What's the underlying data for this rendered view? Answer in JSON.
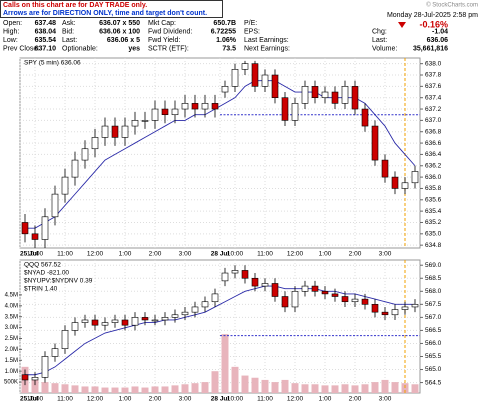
{
  "header": {
    "notice": [
      "Calls on this chart are for DAY TRADE only.",
      "Arrows are for DIRECTION ONLY, time and target don't count."
    ],
    "brand": "© StockCharts.com",
    "date": "Monday 28-Jul-2025 2:58 pm",
    "change_pct": "-0.16%",
    "quote": [
      [
        [
          "Open:",
          "637.48"
        ],
        [
          "Ask:",
          "636.07 x 550"
        ],
        [
          "Mkt Cap:",
          "650.7B"
        ],
        [
          "P/E:"
        ]
      ],
      [
        [
          "High:",
          "638.04"
        ],
        [
          "Bid:",
          "636.06 x 100"
        ],
        [
          "Fwd Dividend:",
          "6.72255"
        ],
        [
          "EPS:"
        ],
        [
          "Chg:",
          "-1.04"
        ]
      ],
      [
        [
          "Low:",
          "635.54"
        ],
        [
          "Last:",
          "636.06 x 5"
        ],
        [
          "Fwd Yield:",
          "1.06%"
        ],
        [
          "Last Earnings:"
        ],
        [
          "Last:",
          "636.06"
        ]
      ],
      [
        [
          "Prev Close:",
          "637.10"
        ],
        [
          "Optionable:",
          "yes"
        ],
        [
          "SCTR (ETF):",
          "73.5"
        ],
        [
          "Next Earnings:"
        ],
        [
          "Volume:",
          "35,661,816"
        ]
      ]
    ]
  },
  "chart_data": [
    {
      "type": "candlestick",
      "legend": [
        "SPY (5 min) 636.06"
      ],
      "xlim": [
        0,
        40
      ],
      "xticks": [
        {
          "value": 0,
          "label": "25 Jul"
        },
        {
          "value": 1.5,
          "label": "10:00"
        },
        {
          "value": 4.5,
          "label": "11:00"
        },
        {
          "value": 7.5,
          "label": "12:00"
        },
        {
          "value": 10.5,
          "label": "1:00"
        },
        {
          "value": 13.5,
          "label": "2:00"
        },
        {
          "value": 16.5,
          "label": "3:00"
        },
        {
          "value": 20,
          "label": "28 Jul"
        },
        {
          "value": 21.5,
          "label": "10:00"
        },
        {
          "value": 24.5,
          "label": "11:00"
        },
        {
          "value": 27.5,
          "label": "12:00"
        },
        {
          "value": 30.5,
          "label": "1:00"
        },
        {
          "value": 33.5,
          "label": "2:00"
        },
        {
          "value": 36.5,
          "label": "3:00"
        }
      ],
      "ylim": [
        634.75,
        638.1
      ],
      "yticks": [
        {
          "value": 634.8,
          "label": "634.8"
        },
        {
          "value": 635,
          "label": "635.0"
        },
        {
          "value": 635.2,
          "label": "635.2"
        },
        {
          "value": 635.4,
          "label": "635.4"
        },
        {
          "value": 635.6,
          "label": "635.6"
        },
        {
          "value": 635.8,
          "label": "635.8"
        },
        {
          "value": 636,
          "label": "636.0"
        },
        {
          "value": 636.2,
          "label": "636.2"
        },
        {
          "value": 636.4,
          "label": "636.4"
        },
        {
          "value": 636.6,
          "label": "636.6"
        },
        {
          "value": 636.8,
          "label": "636.8"
        },
        {
          "value": 637,
          "label": "637.0"
        },
        {
          "value": 637.2,
          "label": "637.2"
        },
        {
          "value": 637.4,
          "label": "637.4"
        },
        {
          "value": 637.6,
          "label": "637.6"
        },
        {
          "value": 637.8,
          "label": "637.8"
        },
        {
          "value": 638,
          "label": "638.0"
        }
      ],
      "grid": true,
      "up_color": "#ffffff",
      "down_color": "#cc0000",
      "ma_color": "#2a2aa8",
      "ref_line": 637.1,
      "opens": [
        635.2,
        635.0,
        634.9,
        635.3,
        635.7,
        636.0,
        636.3,
        636.5,
        636.7,
        636.9,
        636.7,
        636.9,
        637.0,
        637.0,
        637.2,
        637.1,
        637.2,
        637.3,
        637.2,
        637.3,
        637.5,
        637.6,
        637.9,
        638.0,
        637.6,
        637.8,
        637.4,
        637.0,
        637.3,
        637.6,
        637.4,
        637.5,
        637.3,
        637.6,
        637.2,
        636.9,
        636.3,
        636.0,
        635.8,
        635.9
      ],
      "highs": [
        635.35,
        635.15,
        635.45,
        635.85,
        636.15,
        636.45,
        636.65,
        636.85,
        637.05,
        637.05,
        637.05,
        637.15,
        637.15,
        637.35,
        637.35,
        637.35,
        637.45,
        637.45,
        637.45,
        637.45,
        637.7,
        638.0,
        638.05,
        638.05,
        637.9,
        637.9,
        637.5,
        637.4,
        637.7,
        637.7,
        637.6,
        637.6,
        637.7,
        637.7,
        637.3,
        637.0,
        636.4,
        636.1,
        636.0,
        636.2
      ],
      "lows": [
        634.85,
        634.75,
        634.75,
        635.15,
        635.55,
        635.85,
        636.15,
        636.35,
        636.55,
        636.55,
        636.55,
        636.75,
        636.85,
        636.85,
        636.95,
        636.95,
        637.05,
        637.05,
        637.05,
        637.05,
        637.4,
        637.5,
        637.8,
        637.5,
        637.5,
        637.3,
        636.9,
        636.9,
        637.2,
        637.3,
        637.3,
        637.2,
        637.2,
        637.1,
        636.8,
        636.2,
        635.9,
        635.7,
        635.7,
        635.8
      ],
      "closes": [
        635.0,
        634.9,
        635.3,
        635.7,
        636.0,
        636.3,
        636.5,
        636.7,
        636.9,
        636.7,
        636.9,
        637.0,
        637.0,
        637.2,
        637.1,
        637.2,
        637.3,
        637.2,
        637.3,
        637.2,
        637.6,
        637.9,
        638.0,
        637.6,
        637.8,
        637.4,
        637.0,
        637.3,
        637.6,
        637.4,
        637.5,
        637.3,
        637.6,
        637.2,
        636.9,
        636.3,
        636.0,
        635.8,
        635.9,
        636.1
      ],
      "ma": [
        635.1,
        635.1,
        635.2,
        635.3,
        635.5,
        635.7,
        635.9,
        636.1,
        636.3,
        636.4,
        636.5,
        636.6,
        636.7,
        636.8,
        636.9,
        637.0,
        637.0,
        637.1,
        637.1,
        637.2,
        637.3,
        637.4,
        637.6,
        637.7,
        637.7,
        637.7,
        637.6,
        637.5,
        637.5,
        637.5,
        637.4,
        637.4,
        637.4,
        637.4,
        637.3,
        637.1,
        636.9,
        636.6,
        636.4,
        636.2
      ]
    },
    {
      "type": "candlestick",
      "legend": [
        "QQQ 567.52",
        "$NYAD -821.00",
        "$NYUPV:$NYDNV 0.39",
        "$TRIN 1.40"
      ],
      "xlim": [
        0,
        40
      ],
      "xticks": [
        {
          "value": 0,
          "label": "25 Jul"
        },
        {
          "value": 1.5,
          "label": "10:00"
        },
        {
          "value": 4.5,
          "label": "11:00"
        },
        {
          "value": 7.5,
          "label": "12:00"
        },
        {
          "value": 10.5,
          "label": "1:00"
        },
        {
          "value": 13.5,
          "label": "2:00"
        },
        {
          "value": 16.5,
          "label": "3:00"
        },
        {
          "value": 20,
          "label": "28 Jul"
        },
        {
          "value": 21.5,
          "label": "10:00"
        },
        {
          "value": 24.5,
          "label": "11:00"
        },
        {
          "value": 27.5,
          "label": "12:00"
        },
        {
          "value": 30.5,
          "label": "1:00"
        },
        {
          "value": 33.5,
          "label": "2:00"
        },
        {
          "value": 36.5,
          "label": "3:00"
        }
      ],
      "ylim": [
        564.1,
        569.2
      ],
      "yticks": [
        {
          "value": 564.5,
          "label": "564.5"
        },
        {
          "value": 565,
          "label": "565.0"
        },
        {
          "value": 565.5,
          "label": "565.5"
        },
        {
          "value": 566,
          "label": "566.0"
        },
        {
          "value": 566.5,
          "label": "566.5"
        },
        {
          "value": 567,
          "label": "567.0"
        },
        {
          "value": 567.5,
          "label": "567.5"
        },
        {
          "value": 568,
          "label": "568.0"
        },
        {
          "value": 568.5,
          "label": "568.5"
        },
        {
          "value": 569,
          "label": "569.0"
        }
      ],
      "y2lim": [
        0,
        6100000
      ],
      "y2ticks": [
        {
          "value": 500000,
          "label": "500K"
        },
        {
          "value": 1000000,
          "label": "1.0M"
        },
        {
          "value": 1500000,
          "label": "1.5M"
        },
        {
          "value": 2000000,
          "label": "2.0M"
        },
        {
          "value": 2500000,
          "label": "2.5M"
        },
        {
          "value": 3000000,
          "label": "3.0M"
        },
        {
          "value": 3500000,
          "label": "3.5M"
        },
        {
          "value": 4000000,
          "label": "4.0M"
        },
        {
          "value": 4500000,
          "label": "4.5M"
        }
      ],
      "grid": true,
      "up_color": "#ffffff",
      "down_color": "#cc0000",
      "ma_color": "#2a2aa8",
      "volume_color": "#e8b4bc",
      "ref_line": 566.3,
      "opens": [
        564.8,
        564.6,
        564.7,
        565.5,
        565.8,
        566.5,
        566.8,
        566.9,
        566.7,
        566.8,
        566.9,
        566.7,
        567.0,
        566.9,
        566.9,
        567.0,
        567.1,
        567.2,
        567.4,
        567.6,
        568.4,
        568.7,
        568.8,
        568.5,
        568.2,
        568.3,
        567.8,
        567.4,
        568.0,
        568.2,
        568.0,
        567.9,
        567.8,
        567.6,
        567.7,
        567.5,
        567.2,
        567.1,
        567.3,
        567.4
      ],
      "highs": [
        565.0,
        564.9,
        565.7,
        566.0,
        566.7,
        567.0,
        567.1,
        567.1,
        567.0,
        567.1,
        567.1,
        567.2,
        567.2,
        567.1,
        567.2,
        567.3,
        567.4,
        567.6,
        567.8,
        568.1,
        568.9,
        569.0,
        569.0,
        568.7,
        568.5,
        568.5,
        568.0,
        568.2,
        568.4,
        568.4,
        568.2,
        568.1,
        568.0,
        567.9,
        567.9,
        567.7,
        567.4,
        567.5,
        567.6,
        567.7
      ],
      "lows": [
        564.4,
        564.4,
        564.5,
        565.3,
        565.6,
        566.3,
        566.6,
        566.5,
        566.5,
        566.6,
        566.5,
        566.5,
        566.7,
        566.7,
        566.7,
        566.8,
        566.9,
        567.0,
        567.2,
        567.4,
        568.2,
        568.5,
        568.3,
        568.0,
        568.0,
        567.6,
        567.2,
        567.2,
        567.8,
        567.8,
        567.7,
        567.6,
        567.4,
        567.4,
        567.3,
        567.0,
        566.9,
        566.9,
        567.1,
        567.2
      ],
      "closes": [
        564.6,
        564.7,
        565.5,
        565.8,
        566.5,
        566.8,
        566.9,
        566.7,
        566.8,
        566.9,
        566.7,
        567.0,
        566.9,
        566.9,
        567.0,
        567.1,
        567.2,
        567.4,
        567.6,
        567.9,
        568.7,
        568.8,
        568.5,
        568.2,
        568.3,
        567.8,
        567.4,
        568.0,
        568.2,
        568.0,
        567.9,
        567.8,
        567.6,
        567.7,
        567.5,
        567.2,
        567.1,
        567.3,
        567.4,
        567.5
      ],
      "ma": [
        564.8,
        564.8,
        564.9,
        565.1,
        565.4,
        565.7,
        566.0,
        566.2,
        566.4,
        566.5,
        566.6,
        566.7,
        566.8,
        566.8,
        566.9,
        566.9,
        567.0,
        567.1,
        567.2,
        567.4,
        567.6,
        567.8,
        568.0,
        568.1,
        568.2,
        568.2,
        568.1,
        568.1,
        568.1,
        568.1,
        568.0,
        568.0,
        567.9,
        567.9,
        567.8,
        567.7,
        567.6,
        567.5,
        567.5,
        567.5
      ],
      "volumes": [
        1200000,
        600000,
        500000,
        450000,
        400000,
        350000,
        300000,
        300000,
        250000,
        250000,
        250000,
        300000,
        250000,
        300000,
        300000,
        350000,
        400000,
        450000,
        500000,
        1000000,
        2700000,
        1200000,
        800000,
        700000,
        600000,
        500000,
        600000,
        450000,
        400000,
        400000,
        350000,
        350000,
        400000,
        350000,
        400000,
        500000,
        600000,
        500000,
        450000,
        400000
      ]
    }
  ]
}
